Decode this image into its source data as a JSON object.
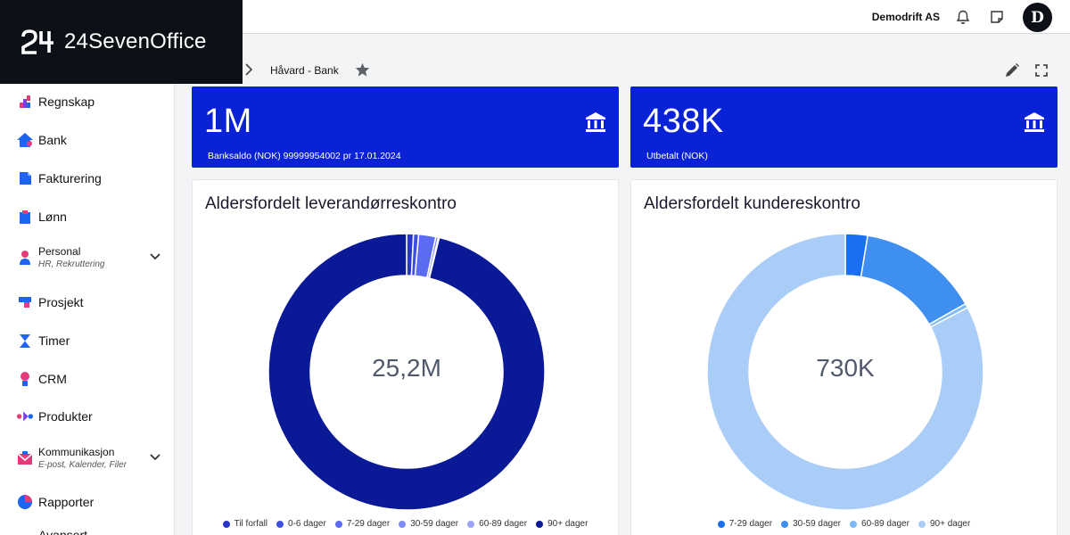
{
  "app": {
    "logo_text": "24SevenOffice",
    "company": "Demodrift AS",
    "avatar_letter": "D"
  },
  "sidebar": {
    "items": [
      {
        "label": "Regnskap",
        "icon": "chart-blocks-icon"
      },
      {
        "label": "Bank",
        "icon": "bank-house-icon"
      },
      {
        "label": "Fakturering",
        "icon": "invoice-icon"
      },
      {
        "label": "Lønn",
        "icon": "clipboard-icon"
      },
      {
        "label": "Personal",
        "sub": "HR, Rekruttering",
        "icon": "person-icon"
      },
      {
        "label": "Prosjekt",
        "icon": "project-icon"
      },
      {
        "label": "Timer",
        "icon": "hourglass-icon"
      },
      {
        "label": "CRM",
        "icon": "crm-icon"
      },
      {
        "label": "Produkter",
        "icon": "products-icon"
      },
      {
        "label": "Kommunikasjon",
        "sub": "E-post, Kalender, Filer",
        "icon": "mail-icon"
      },
      {
        "label": "Rapporter",
        "icon": "pie-icon"
      },
      {
        "label": "Avansert",
        "icon": "advanced-icon"
      }
    ]
  },
  "breadcrumb": {
    "title": "Håvard - Bank"
  },
  "kpis": [
    {
      "value": "1M",
      "subtitle": "Banksaldo (NOK) 99999954002 pr 17.01.2024"
    },
    {
      "value": "438K",
      "subtitle": "Utbetalt (NOK)"
    }
  ],
  "colors": {
    "accent": "#0a22d6",
    "topbar_dark": "#0d1117"
  },
  "chart_data": [
    {
      "type": "pie",
      "title": "Aldersfordelt leverandørreskontro",
      "center_label": "25,2M",
      "categories": [
        "Til forfall",
        "0-6 dager",
        "7-29 dager",
        "30-59 dager",
        "60-89 dager",
        "90+ dager"
      ],
      "values": [
        0.8,
        0.6,
        2.0,
        0.3,
        0.1,
        96.2
      ],
      "colors": [
        "#2a35c9",
        "#3f4fe0",
        "#5b6cf2",
        "#7e8cf5",
        "#9aa5f7",
        "#0a1a96"
      ]
    },
    {
      "type": "pie",
      "title": "Aldersfordelt kundereskontro",
      "center_label": "730K",
      "categories": [
        "7-29 dager",
        "30-59 dager",
        "60-89 dager",
        "90+ dager"
      ],
      "values": [
        2.6,
        14.2,
        0.5,
        82.7
      ],
      "colors": [
        "#1a6ef0",
        "#3f8ff0",
        "#7fb9f5",
        "#aacdf7"
      ]
    }
  ]
}
